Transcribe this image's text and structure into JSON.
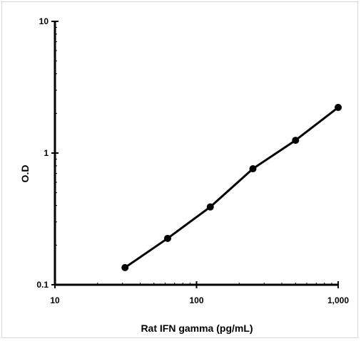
{
  "chart_data": {
    "type": "line",
    "title": "",
    "xlabel": "Rat IFN gamma (pg/mL)",
    "ylabel": "O.D",
    "x_scale": "log",
    "y_scale": "log",
    "xlim": [
      10,
      1000
    ],
    "ylim": [
      0.1,
      10
    ],
    "x_ticks": [
      {
        "value": 10,
        "label": "10"
      },
      {
        "value": 100,
        "label": "100"
      },
      {
        "value": 1000,
        "label": "1,000"
      }
    ],
    "y_ticks": [
      {
        "value": 0.1,
        "label": "0.1"
      },
      {
        "value": 1,
        "label": "1"
      },
      {
        "value": 10,
        "label": "10"
      }
    ],
    "grid": false,
    "legend": "none",
    "series": [
      {
        "color": "#000000",
        "x": [
          31.25,
          62.5,
          125,
          250,
          500,
          1000
        ],
        "y": [
          0.135,
          0.225,
          0.39,
          0.76,
          1.25,
          2.22
        ]
      }
    ]
  }
}
